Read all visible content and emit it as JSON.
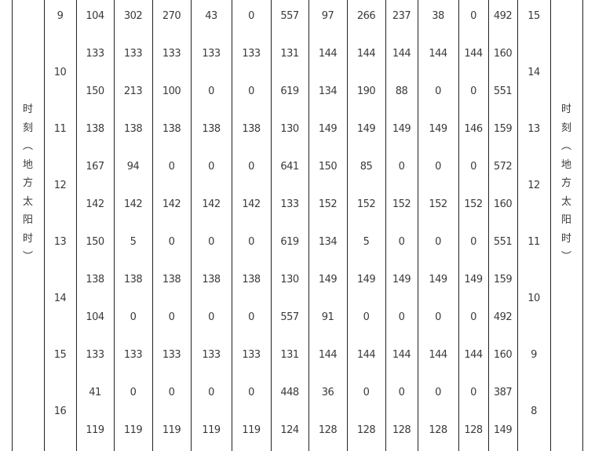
{
  "table": {
    "side_label": [
      "时",
      "刻",
      "︵",
      "地",
      "方",
      "太",
      "阳",
      "时",
      "︶"
    ],
    "left_hours": [
      {
        "hour": "9",
        "span": 1
      },
      {
        "hour": "10",
        "span": 2
      },
      {
        "hour": "11",
        "span": 1
      },
      {
        "hour": "12",
        "span": 2
      },
      {
        "hour": "13",
        "span": 1
      },
      {
        "hour": "14",
        "span": 2
      },
      {
        "hour": "15",
        "span": 1
      },
      {
        "hour": "16",
        "span": 2
      }
    ],
    "right_hours": [
      {
        "hour": "15",
        "span": 1
      },
      {
        "hour": "14",
        "span": 2
      },
      {
        "hour": "13",
        "span": 1
      },
      {
        "hour": "12",
        "span": 2
      },
      {
        "hour": "11",
        "span": 1
      },
      {
        "hour": "10",
        "span": 2
      },
      {
        "hour": "9",
        "span": 1
      },
      {
        "hour": "8",
        "span": 2
      }
    ],
    "rows": [
      [
        "104",
        "302",
        "270",
        "43",
        "0",
        "557",
        "97",
        "266",
        "237",
        "38",
        "0",
        "492"
      ],
      [
        "133",
        "133",
        "133",
        "133",
        "133",
        "131",
        "144",
        "144",
        "144",
        "144",
        "144",
        "160"
      ],
      [
        "150",
        "213",
        "100",
        "0",
        "0",
        "619",
        "134",
        "190",
        "88",
        "0",
        "0",
        "551"
      ],
      [
        "138",
        "138",
        "138",
        "138",
        "138",
        "130",
        "149",
        "149",
        "149",
        "149",
        "146",
        "159"
      ],
      [
        "167",
        "94",
        "0",
        "0",
        "0",
        "641",
        "150",
        "85",
        "0",
        "0",
        "0",
        "572"
      ],
      [
        "142",
        "142",
        "142",
        "142",
        "142",
        "133",
        "152",
        "152",
        "152",
        "152",
        "152",
        "160"
      ],
      [
        "150",
        "5",
        "0",
        "0",
        "0",
        "619",
        "134",
        "5",
        "0",
        "0",
        "0",
        "551"
      ],
      [
        "138",
        "138",
        "138",
        "138",
        "138",
        "130",
        "149",
        "149",
        "149",
        "149",
        "149",
        "159"
      ],
      [
        "104",
        "0",
        "0",
        "0",
        "0",
        "557",
        "91",
        "0",
        "0",
        "0",
        "0",
        "492"
      ],
      [
        "133",
        "133",
        "133",
        "133",
        "133",
        "131",
        "144",
        "144",
        "144",
        "144",
        "144",
        "160"
      ],
      [
        "41",
        "0",
        "0",
        "0",
        "0",
        "448",
        "36",
        "0",
        "0",
        "0",
        "0",
        "387"
      ],
      [
        "119",
        "119",
        "119",
        "119",
        "119",
        "124",
        "128",
        "128",
        "128",
        "128",
        "128",
        "149"
      ]
    ]
  }
}
